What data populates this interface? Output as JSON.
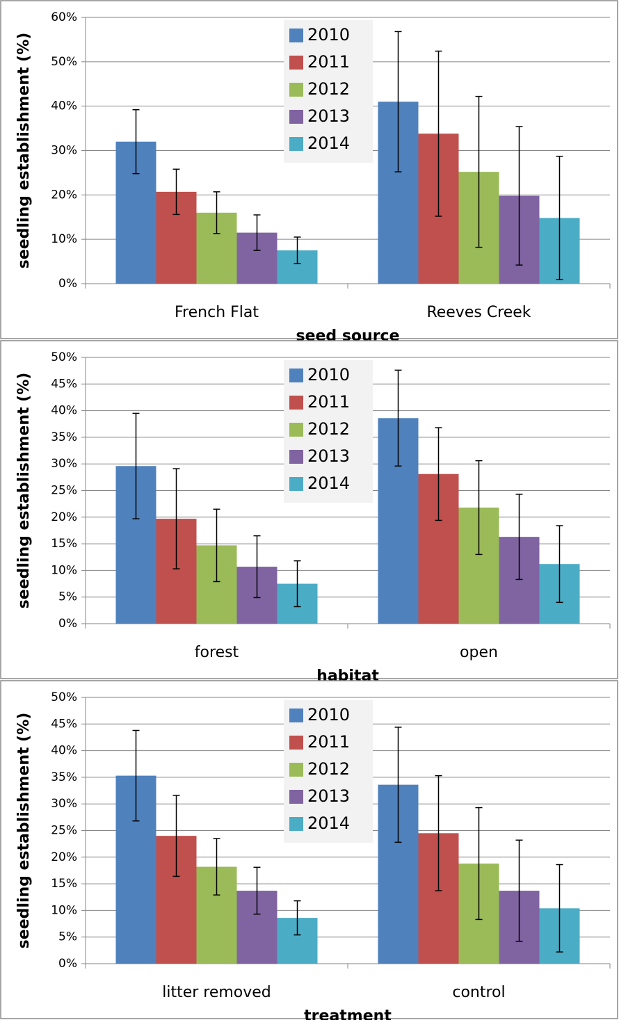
{
  "chart_data": [
    {
      "type": "bar",
      "y_label": "seedling establishment (%)",
      "x_label": "seed source",
      "categories": [
        "French Flat",
        "Reeves Creek"
      ],
      "series": [
        {
          "name": "2010",
          "color": "#4f81bd",
          "values": [
            32.0,
            41.0
          ],
          "errors": [
            7.2,
            15.8
          ]
        },
        {
          "name": "2011",
          "color": "#c0504d",
          "values": [
            20.7,
            33.8
          ],
          "errors": [
            5.1,
            18.6
          ]
        },
        {
          "name": "2012",
          "color": "#9bbb59",
          "values": [
            16.0,
            25.2
          ],
          "errors": [
            4.7,
            17.0
          ]
        },
        {
          "name": "2013",
          "color": "#8064a2",
          "values": [
            11.5,
            19.8
          ],
          "errors": [
            4.0,
            15.6
          ]
        },
        {
          "name": "2014",
          "color": "#4bacc6",
          "values": [
            7.5,
            14.8
          ],
          "errors": [
            3.0,
            13.9
          ]
        }
      ],
      "ylim": [
        0,
        60
      ],
      "yticks": [
        {
          "value": 0,
          "label": "0%"
        },
        {
          "value": 10,
          "label": "10%"
        },
        {
          "value": 20,
          "label": "20%"
        },
        {
          "value": 30,
          "label": "30%"
        },
        {
          "value": 40,
          "label": "40%"
        },
        {
          "value": 50,
          "label": "50%"
        },
        {
          "value": 60,
          "label": "60%"
        }
      ],
      "grid": true,
      "legend": "top"
    },
    {
      "type": "bar",
      "y_label": "seedling establishment (%)",
      "x_label": "habitat",
      "categories": [
        "forest",
        "open"
      ],
      "series": [
        {
          "name": "2010",
          "color": "#4f81bd",
          "values": [
            29.6,
            38.6
          ],
          "errors": [
            9.9,
            9.0
          ]
        },
        {
          "name": "2011",
          "color": "#c0504d",
          "values": [
            19.7,
            28.1
          ],
          "errors": [
            9.4,
            8.7
          ]
        },
        {
          "name": "2012",
          "color": "#9bbb59",
          "values": [
            14.7,
            21.8
          ],
          "errors": [
            6.8,
            8.8
          ]
        },
        {
          "name": "2013",
          "color": "#8064a2",
          "values": [
            10.7,
            16.3
          ],
          "errors": [
            5.8,
            8.0
          ]
        },
        {
          "name": "2014",
          "color": "#4bacc6",
          "values": [
            7.5,
            11.2
          ],
          "errors": [
            4.3,
            7.2
          ]
        }
      ],
      "ylim": [
        0,
        50
      ],
      "yticks": [
        {
          "value": 0,
          "label": "0%"
        },
        {
          "value": 5,
          "label": "5%"
        },
        {
          "value": 10,
          "label": "10%"
        },
        {
          "value": 15,
          "label": "15%"
        },
        {
          "value": 20,
          "label": "20%"
        },
        {
          "value": 25,
          "label": "25%"
        },
        {
          "value": 30,
          "label": "30%"
        },
        {
          "value": 35,
          "label": "35%"
        },
        {
          "value": 40,
          "label": "40%"
        },
        {
          "value": 45,
          "label": "45%"
        },
        {
          "value": 50,
          "label": "50%"
        }
      ],
      "grid": true,
      "legend": "top"
    },
    {
      "type": "bar",
      "y_label": "seedling establishment (%)",
      "x_label": "treatment",
      "categories": [
        "litter removed",
        "control"
      ],
      "series": [
        {
          "name": "2010",
          "color": "#4f81bd",
          "values": [
            35.3,
            33.6
          ],
          "errors": [
            8.5,
            10.8
          ]
        },
        {
          "name": "2011",
          "color": "#c0504d",
          "values": [
            24.0,
            24.5
          ],
          "errors": [
            7.6,
            10.8
          ]
        },
        {
          "name": "2012",
          "color": "#9bbb59",
          "values": [
            18.2,
            18.8
          ],
          "errors": [
            5.3,
            10.5
          ]
        },
        {
          "name": "2013",
          "color": "#8064a2",
          "values": [
            13.7,
            13.7
          ],
          "errors": [
            4.4,
            9.5
          ]
        },
        {
          "name": "2014",
          "color": "#4bacc6",
          "values": [
            8.6,
            10.4
          ],
          "errors": [
            3.2,
            8.2
          ]
        }
      ],
      "ylim": [
        0,
        50
      ],
      "yticks": [
        {
          "value": 0,
          "label": "0%"
        },
        {
          "value": 5,
          "label": "5%"
        },
        {
          "value": 10,
          "label": "10%"
        },
        {
          "value": 15,
          "label": "15%"
        },
        {
          "value": 20,
          "label": "20%"
        },
        {
          "value": 25,
          "label": "25%"
        },
        {
          "value": 30,
          "label": "30%"
        },
        {
          "value": 35,
          "label": "35%"
        },
        {
          "value": 40,
          "label": "40%"
        },
        {
          "value": 45,
          "label": "45%"
        },
        {
          "value": 50,
          "label": "50%"
        }
      ],
      "grid": true,
      "legend": "top"
    }
  ]
}
